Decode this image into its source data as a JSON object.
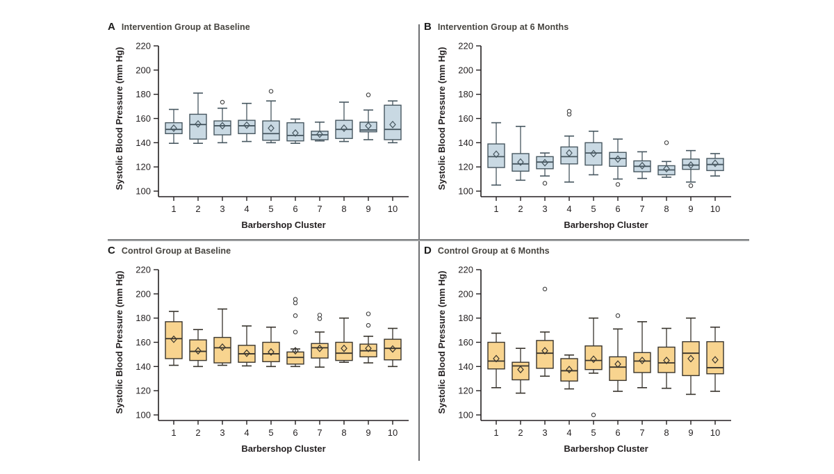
{
  "figure": {
    "ylabel": "Systolic Blood Pressure (mm Hg)",
    "xlabel": "Barbershop Cluster",
    "colors": {
      "intervention_fill": "#c9d9e3",
      "intervention_stroke": "#46565f",
      "control_fill": "#f8d48f",
      "control_stroke": "#37332c",
      "axis": "#231f20",
      "outlier": "#3d3d3d",
      "divider": "#6d6e71"
    }
  },
  "chart_data": [
    {
      "type": "box",
      "panel": "A",
      "title": "Intervention Group at Baseline",
      "group": "intervention",
      "xlabel": "Barbershop Cluster",
      "ylabel": "Systolic Blood Pressure (mm Hg)",
      "ylim": [
        94,
        223
      ],
      "yticks": [
        100,
        120,
        140,
        160,
        180,
        200,
        220
      ],
      "categories": [
        "1",
        "2",
        "3",
        "4",
        "5",
        "6",
        "7",
        "8",
        "9",
        "10"
      ],
      "boxes": [
        {
          "low": 139.5,
          "q1": 147.5,
          "median": 151,
          "q3": 156.5,
          "high": 167.5,
          "mean": 152,
          "outliers": []
        },
        {
          "low": 139.5,
          "q1": 143,
          "median": 155,
          "q3": 163.5,
          "high": 181,
          "mean": 155.5,
          "outliers": []
        },
        {
          "low": 140,
          "q1": 146.5,
          "median": 154,
          "q3": 158,
          "high": 168.5,
          "mean": 154,
          "outliers": [
            173.5
          ]
        },
        {
          "low": 141,
          "q1": 147.5,
          "median": 154,
          "q3": 158.5,
          "high": 172.5,
          "mean": 154.5,
          "outliers": []
        },
        {
          "low": 140,
          "q1": 142,
          "median": 147.5,
          "q3": 158,
          "high": 174.5,
          "mean": 152,
          "outliers": [
            182.5
          ]
        },
        {
          "low": 139.5,
          "q1": 141.5,
          "median": 146,
          "q3": 156.5,
          "high": 159.5,
          "mean": 148,
          "outliers": []
        },
        {
          "low": 141.5,
          "q1": 142.5,
          "median": 146.5,
          "q3": 149.5,
          "high": 157,
          "mean": 147,
          "outliers": []
        },
        {
          "low": 141,
          "q1": 143.5,
          "median": 151,
          "q3": 158.5,
          "high": 173.5,
          "mean": 152,
          "outliers": []
        },
        {
          "low": 142.5,
          "q1": 149,
          "median": 150.5,
          "q3": 157,
          "high": 167,
          "mean": 154,
          "outliers": [
            179.5
          ]
        },
        {
          "low": 140,
          "q1": 142.5,
          "median": 151,
          "q3": 171,
          "high": 174.5,
          "mean": 155,
          "outliers": []
        }
      ]
    },
    {
      "type": "box",
      "panel": "B",
      "title": "Intervention Group at 6 Months",
      "group": "intervention",
      "xlabel": "Barbershop Cluster",
      "ylabel": "Systolic Blood Pressure (mm Hg)",
      "ylim": [
        94,
        223
      ],
      "yticks": [
        100,
        120,
        140,
        160,
        180,
        200,
        220
      ],
      "categories": [
        "1",
        "2",
        "3",
        "4",
        "5",
        "6",
        "7",
        "8",
        "9",
        "10"
      ],
      "boxes": [
        {
          "low": 105,
          "q1": 119.5,
          "median": 128.5,
          "q3": 139,
          "high": 156.5,
          "mean": 130.5,
          "outliers": []
        },
        {
          "low": 109,
          "q1": 116.5,
          "median": 122.5,
          "q3": 131,
          "high": 153.5,
          "mean": 124,
          "outliers": []
        },
        {
          "low": 112.5,
          "q1": 118.5,
          "median": 124,
          "q3": 128.5,
          "high": 131.5,
          "mean": 123.5,
          "outliers": [
            106.5
          ]
        },
        {
          "low": 107.5,
          "q1": 122.5,
          "median": 128.5,
          "q3": 136.5,
          "high": 145.5,
          "mean": 131.5,
          "outliers": [
            163.5,
            166
          ]
        },
        {
          "low": 113.5,
          "q1": 121.5,
          "median": 131.5,
          "q3": 140,
          "high": 149.5,
          "mean": 131,
          "outliers": []
        },
        {
          "low": 110,
          "q1": 120.5,
          "median": 127,
          "q3": 132,
          "high": 143,
          "mean": 126.5,
          "outliers": [
            105.5
          ]
        },
        {
          "low": 110.5,
          "q1": 116,
          "median": 120.5,
          "q3": 125,
          "high": 132.5,
          "mean": 121,
          "outliers": []
        },
        {
          "low": 111.5,
          "q1": 113.5,
          "median": 117.5,
          "q3": 121,
          "high": 124.5,
          "mean": 118.5,
          "outliers": [
            140
          ]
        },
        {
          "low": 107.5,
          "q1": 118,
          "median": 121.5,
          "q3": 126.5,
          "high": 133.5,
          "mean": 121.5,
          "outliers": [
            104.5
          ]
        },
        {
          "low": 112.5,
          "q1": 117,
          "median": 122,
          "q3": 127,
          "high": 131,
          "mean": 123,
          "outliers": []
        }
      ]
    },
    {
      "type": "box",
      "panel": "C",
      "title": "Control Group at Baseline",
      "group": "control",
      "xlabel": "Barbershop Cluster",
      "ylabel": "Systolic Blood Pressure (mm Hg)",
      "ylim": [
        94,
        223
      ],
      "yticks": [
        100,
        120,
        140,
        160,
        180,
        200,
        220
      ],
      "categories": [
        "1",
        "2",
        "3",
        "4",
        "5",
        "6",
        "7",
        "8",
        "9",
        "10"
      ],
      "boxes": [
        {
          "low": 141,
          "q1": 146.5,
          "median": 163,
          "q3": 177,
          "high": 185.5,
          "mean": 162.5,
          "outliers": []
        },
        {
          "low": 140,
          "q1": 145,
          "median": 152.5,
          "q3": 162,
          "high": 170.5,
          "mean": 153,
          "outliers": []
        },
        {
          "low": 141,
          "q1": 143,
          "median": 155.5,
          "q3": 164,
          "high": 187.5,
          "mean": 156,
          "outliers": []
        },
        {
          "low": 140.5,
          "q1": 143.5,
          "median": 150.5,
          "q3": 157.5,
          "high": 173.5,
          "mean": 151,
          "outliers": []
        },
        {
          "low": 140,
          "q1": 144,
          "median": 150.5,
          "q3": 160,
          "high": 172.5,
          "mean": 152,
          "outliers": []
        },
        {
          "low": 140,
          "q1": 142,
          "median": 147.5,
          "q3": 152,
          "high": 154.5,
          "mean": 153,
          "outliers": [
            168.5,
            182,
            192.5,
            195.5
          ]
        },
        {
          "low": 139.5,
          "q1": 147,
          "median": 155.5,
          "q3": 159,
          "high": 168.5,
          "mean": 155,
          "outliers": [
            179.5,
            182.5
          ]
        },
        {
          "low": 143.5,
          "q1": 145,
          "median": 151,
          "q3": 160,
          "high": 180,
          "mean": 155,
          "outliers": []
        },
        {
          "low": 143,
          "q1": 148,
          "median": 153,
          "q3": 158.5,
          "high": 165,
          "mean": 155,
          "outliers": [
            174,
            183.5
          ]
        },
        {
          "low": 140,
          "q1": 145.5,
          "median": 155,
          "q3": 162.5,
          "high": 171.5,
          "mean": 154.5,
          "outliers": []
        }
      ]
    },
    {
      "type": "box",
      "panel": "D",
      "title": "Control Group at 6 Months",
      "group": "control",
      "xlabel": "Barbershop Cluster",
      "ylabel": "Systolic Blood Pressure (mm Hg)",
      "ylim": [
        94,
        223
      ],
      "yticks": [
        100,
        120,
        140,
        160,
        180,
        200,
        220
      ],
      "categories": [
        "1",
        "2",
        "3",
        "4",
        "5",
        "6",
        "7",
        "8",
        "9",
        "10"
      ],
      "boxes": [
        {
          "low": 122.5,
          "q1": 138,
          "median": 144.5,
          "q3": 160,
          "high": 167.5,
          "mean": 146.5,
          "outliers": []
        },
        {
          "low": 118,
          "q1": 129,
          "median": 140.5,
          "q3": 143.5,
          "high": 155,
          "mean": 137.5,
          "outliers": []
        },
        {
          "low": 132,
          "q1": 138.5,
          "median": 151,
          "q3": 161.5,
          "high": 168.5,
          "mean": 153,
          "outliers": [
            204
          ]
        },
        {
          "low": 121.5,
          "q1": 128,
          "median": 136.5,
          "q3": 146.5,
          "high": 149.5,
          "mean": 137.5,
          "outliers": []
        },
        {
          "low": 134.5,
          "q1": 137.5,
          "median": 145,
          "q3": 157,
          "high": 180,
          "mean": 146,
          "outliers": [
            100
          ]
        },
        {
          "low": 119.5,
          "q1": 128.5,
          "median": 139.5,
          "q3": 148,
          "high": 171,
          "mean": 142,
          "outliers": [
            182
          ]
        },
        {
          "low": 122.5,
          "q1": 135,
          "median": 144.5,
          "q3": 151.5,
          "high": 177,
          "mean": 145,
          "outliers": []
        },
        {
          "low": 122,
          "q1": 135,
          "median": 143,
          "q3": 156,
          "high": 171.5,
          "mean": 145,
          "outliers": []
        },
        {
          "low": 117,
          "q1": 132.5,
          "median": 151,
          "q3": 160.5,
          "high": 180,
          "mean": 146.5,
          "outliers": []
        },
        {
          "low": 119.5,
          "q1": 134,
          "median": 139,
          "q3": 160.5,
          "high": 172.5,
          "mean": 145.5,
          "outliers": []
        }
      ]
    }
  ]
}
